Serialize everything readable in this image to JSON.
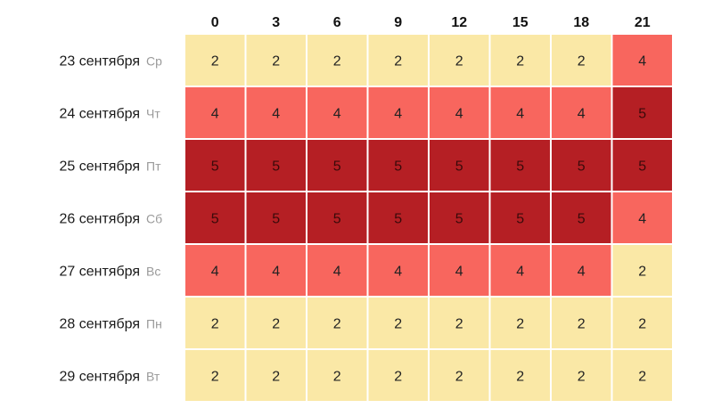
{
  "chart_data": {
    "type": "heatmap",
    "columns": [
      "0",
      "3",
      "6",
      "9",
      "12",
      "15",
      "18",
      "21"
    ],
    "rows": [
      {
        "date": "23 сентября",
        "day": "Ср"
      },
      {
        "date": "24 сентября",
        "day": "Чт"
      },
      {
        "date": "25 сентября",
        "day": "Пт"
      },
      {
        "date": "26 сентября",
        "day": "Сб"
      },
      {
        "date": "27 сентября",
        "day": "Вс"
      },
      {
        "date": "28 сентября",
        "day": "Пн"
      },
      {
        "date": "29 сентября",
        "day": "Вт"
      }
    ],
    "values": [
      [
        2,
        2,
        2,
        2,
        2,
        2,
        2,
        4
      ],
      [
        4,
        4,
        4,
        4,
        4,
        4,
        4,
        5
      ],
      [
        5,
        5,
        5,
        5,
        5,
        5,
        5,
        5
      ],
      [
        5,
        5,
        5,
        5,
        5,
        5,
        5,
        4
      ],
      [
        4,
        4,
        4,
        4,
        4,
        4,
        4,
        2
      ],
      [
        2,
        2,
        2,
        2,
        2,
        2,
        2,
        2
      ],
      [
        2,
        2,
        2,
        2,
        2,
        2,
        2,
        2
      ]
    ],
    "color_scale": {
      "2": "#fae8a6",
      "4": "#f8665e",
      "5": "#b51f24"
    },
    "text_colors": {
      "2": "#222222",
      "4": "#222222",
      "5": "#3a0a0a"
    },
    "grid_color": "#ffffff"
  }
}
